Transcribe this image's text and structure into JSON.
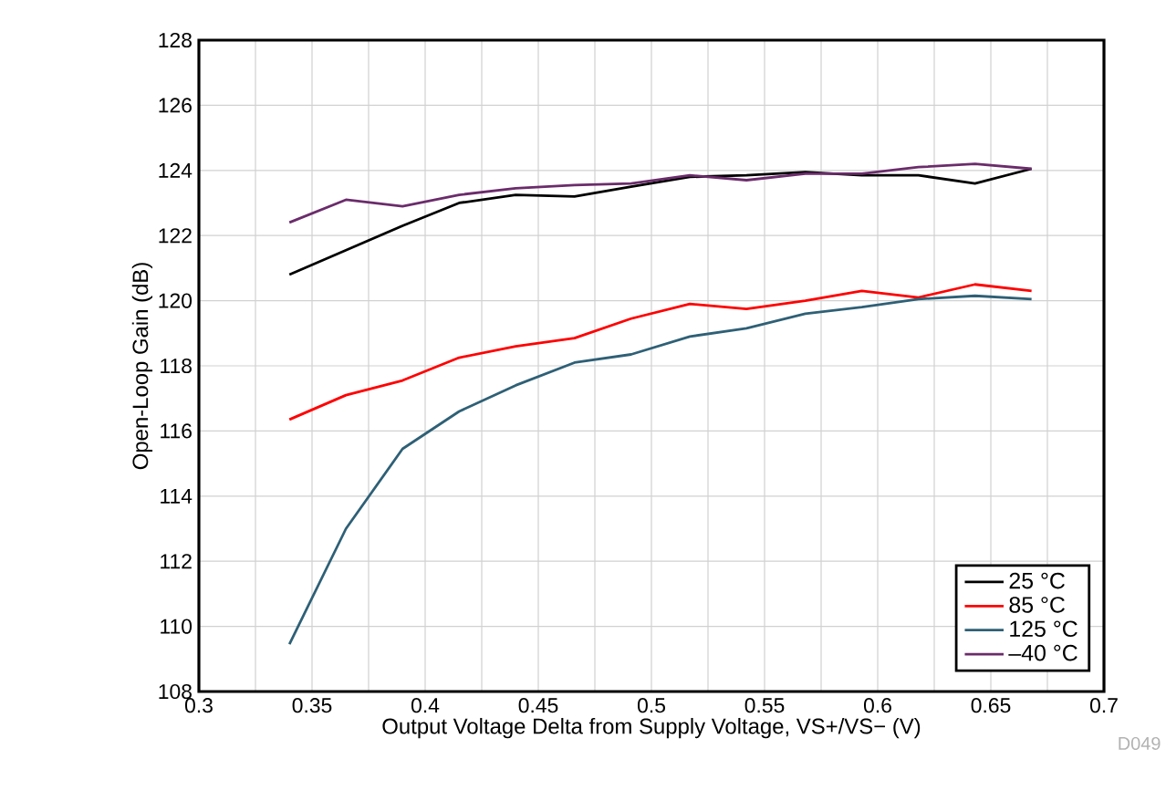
{
  "chart_data": {
    "type": "line",
    "xlabel": "Output Voltage Delta from Supply Voltage, VS+/VS− (V)",
    "ylabel": "Open-Loop Gain (dB)",
    "x": [
      0.34,
      0.365,
      0.39,
      0.415,
      0.44,
      0.466,
      0.491,
      0.517,
      0.542,
      0.568,
      0.593,
      0.618,
      0.643,
      0.668
    ],
    "series": [
      {
        "name": "25 °C",
        "color": "#000000",
        "values": [
          120.8,
          121.55,
          122.3,
          123.0,
          123.25,
          123.2,
          123.5,
          123.8,
          123.85,
          123.95,
          123.85,
          123.85,
          123.6,
          124.05
        ]
      },
      {
        "name": "85 °C",
        "color": "#ff0000",
        "values": [
          116.35,
          117.1,
          117.55,
          118.25,
          118.6,
          118.85,
          119.45,
          119.9,
          119.75,
          120.0,
          120.3,
          120.1,
          120.5,
          120.3
        ]
      },
      {
        "name": "125 °C",
        "color": "#2e6076",
        "values": [
          109.45,
          113.0,
          115.45,
          116.6,
          117.4,
          118.1,
          118.35,
          118.9,
          119.15,
          119.6,
          119.8,
          120.05,
          120.15,
          120.05
        ]
      },
      {
        "name": "–40 °C",
        "color": "#6b2c6b",
        "values": [
          122.4,
          123.1,
          122.9,
          123.25,
          123.45,
          123.55,
          123.6,
          123.85,
          123.7,
          123.9,
          123.9,
          124.1,
          124.2,
          124.05
        ]
      }
    ],
    "xlim": [
      0.3,
      0.7
    ],
    "ylim": [
      108,
      128
    ],
    "xticks": [
      0.3,
      0.35,
      0.4,
      0.45,
      0.5,
      0.55,
      0.6,
      0.65,
      0.7
    ],
    "yticks": [
      108,
      110,
      112,
      114,
      116,
      118,
      120,
      122,
      124,
      126,
      128
    ],
    "grid": true,
    "legend": "bottom right",
    "marker": "none",
    "line_style": "solid",
    "annotations": [
      "D049"
    ]
  }
}
